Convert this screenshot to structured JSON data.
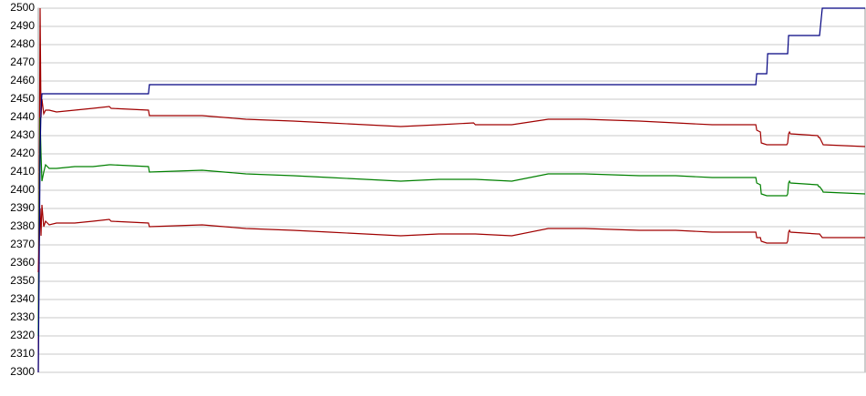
{
  "chart_data": {
    "type": "line",
    "x": [
      0,
      2,
      3,
      4,
      6,
      8,
      12,
      20,
      40,
      60,
      78,
      80,
      121,
      122,
      180,
      228,
      280,
      320,
      398,
      440,
      478,
      480,
      520,
      560,
      600,
      660,
      700,
      740,
      788,
      789,
      793,
      794,
      800,
      801,
      822,
      823,
      824,
      825,
      826,
      856,
      857,
      858,
      861,
      862,
      908
    ],
    "xlim": [
      0,
      908
    ],
    "ylim": [
      2300,
      2500
    ],
    "yticks": [
      2300,
      2310,
      2320,
      2330,
      2340,
      2350,
      2360,
      2370,
      2380,
      2390,
      2400,
      2410,
      2420,
      2430,
      2440,
      2450,
      2460,
      2470,
      2480,
      2490,
      2500
    ],
    "grid": true,
    "series": [
      {
        "color": "#a00000",
        "values": [
          2300,
          2500,
          2440,
          2450,
          2442,
          2444,
          2444,
          2443,
          2444,
          2445,
          2446,
          2445,
          2444,
          2441,
          2441,
          2439,
          2438,
          2437,
          2435,
          2436,
          2437,
          2436,
          2436,
          2439,
          2439,
          2438,
          2437,
          2436,
          2436,
          2433,
          2432,
          2426,
          2425,
          2425,
          2425,
          2426,
          2431,
          2432,
          2431,
          2430,
          2429,
          2429,
          2426,
          2425,
          2424
        ]
      },
      {
        "color": "#008000",
        "values": [
          2320,
          2440,
          2420,
          2405,
          2410,
          2414,
          2412,
          2412,
          2413,
          2413,
          2414,
          2414,
          2413,
          2410,
          2411,
          2409,
          2408,
          2407,
          2405,
          2406,
          2406,
          2406,
          2405,
          2409,
          2409,
          2408,
          2408,
          2407,
          2407,
          2404,
          2403,
          2398,
          2397,
          2397,
          2397,
          2398,
          2404,
          2405,
          2404,
          2403,
          2402,
          2402,
          2400,
          2399,
          2398
        ]
      },
      {
        "color": "#a00000",
        "values": [
          2355,
          2390,
          2375,
          2392,
          2380,
          2383,
          2381,
          2382,
          2382,
          2383,
          2384,
          2383,
          2382,
          2380,
          2381,
          2379,
          2378,
          2377,
          2375,
          2376,
          2376,
          2376,
          2375,
          2379,
          2379,
          2378,
          2378,
          2377,
          2377,
          2374,
          2374,
          2372,
          2371,
          2371,
          2371,
          2372,
          2377,
          2378,
          2377,
          2376,
          2376,
          2376,
          2374,
          2374,
          2374
        ]
      },
      {
        "color": "#000080",
        "values": [
          2300,
          2420,
          2445,
          2453,
          2453,
          2453,
          2453,
          2453,
          2453,
          2453,
          2453,
          2453,
          2453,
          2458,
          2458,
          2458,
          2458,
          2458,
          2458,
          2458,
          2458,
          2458,
          2458,
          2458,
          2458,
          2458,
          2458,
          2458,
          2458,
          2464,
          2464,
          2464,
          2464,
          2475,
          2475,
          2475,
          2485,
          2485,
          2485,
          2485,
          2485,
          2485,
          2500,
          2500,
          2500
        ]
      }
    ]
  }
}
